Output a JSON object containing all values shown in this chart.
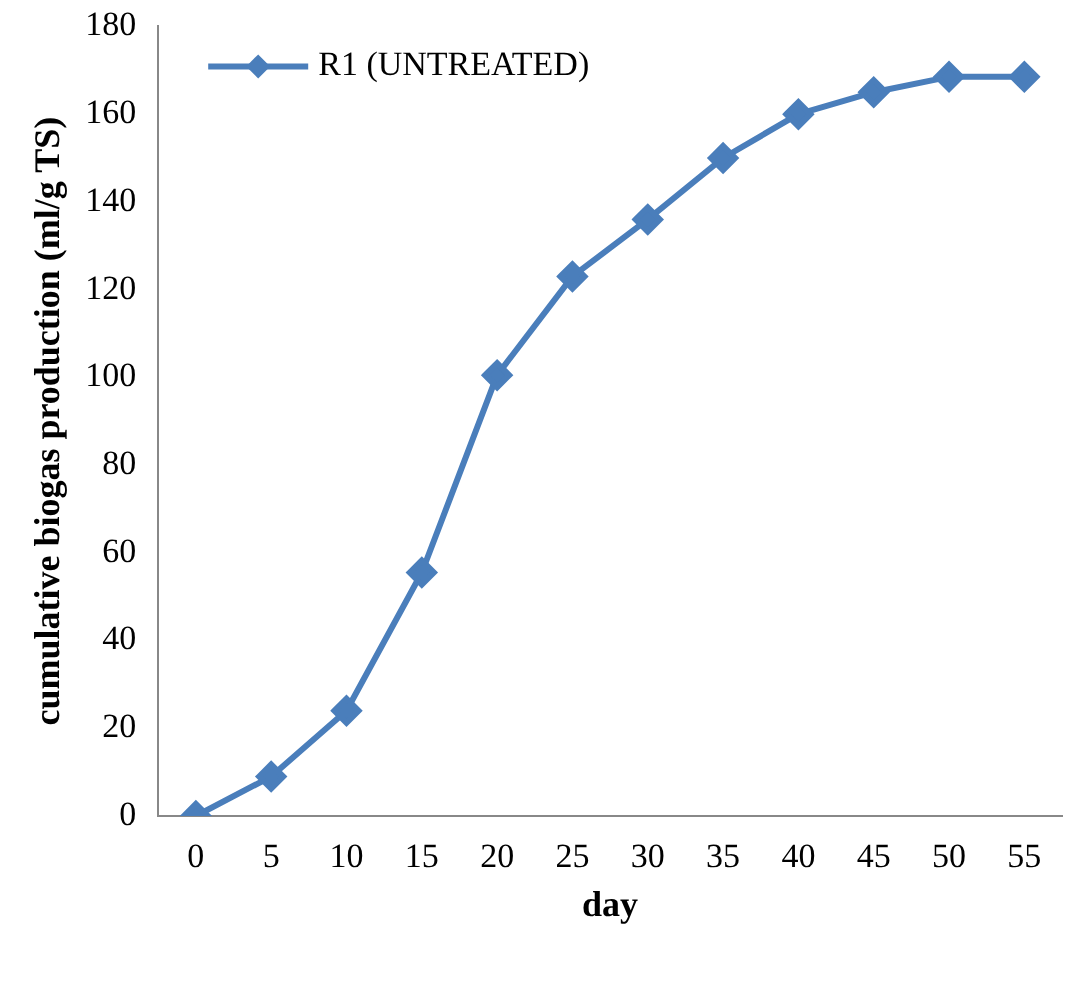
{
  "chart_data": {
    "type": "line",
    "xlabel": "day",
    "ylabel": "cumulative biogas production (ml/g TS)",
    "categories": [
      "0",
      "5",
      "10",
      "15",
      "20",
      "25",
      "30",
      "35",
      "40",
      "45",
      "50",
      "55"
    ],
    "series": [
      {
        "name": "R1 (UNTREATED)",
        "color": "#4a7ebb",
        "values": [
          0,
          9,
          24,
          55.5,
          100.5,
          123,
          136,
          150,
          160,
          165,
          168.5,
          168.5
        ]
      }
    ],
    "ylim": [
      0,
      180
    ],
    "yticks": [
      0,
      20,
      40,
      60,
      80,
      100,
      120,
      140,
      160,
      180
    ],
    "grid": false,
    "legend": "top left",
    "marker": "diamond",
    "line_style": "solid"
  }
}
